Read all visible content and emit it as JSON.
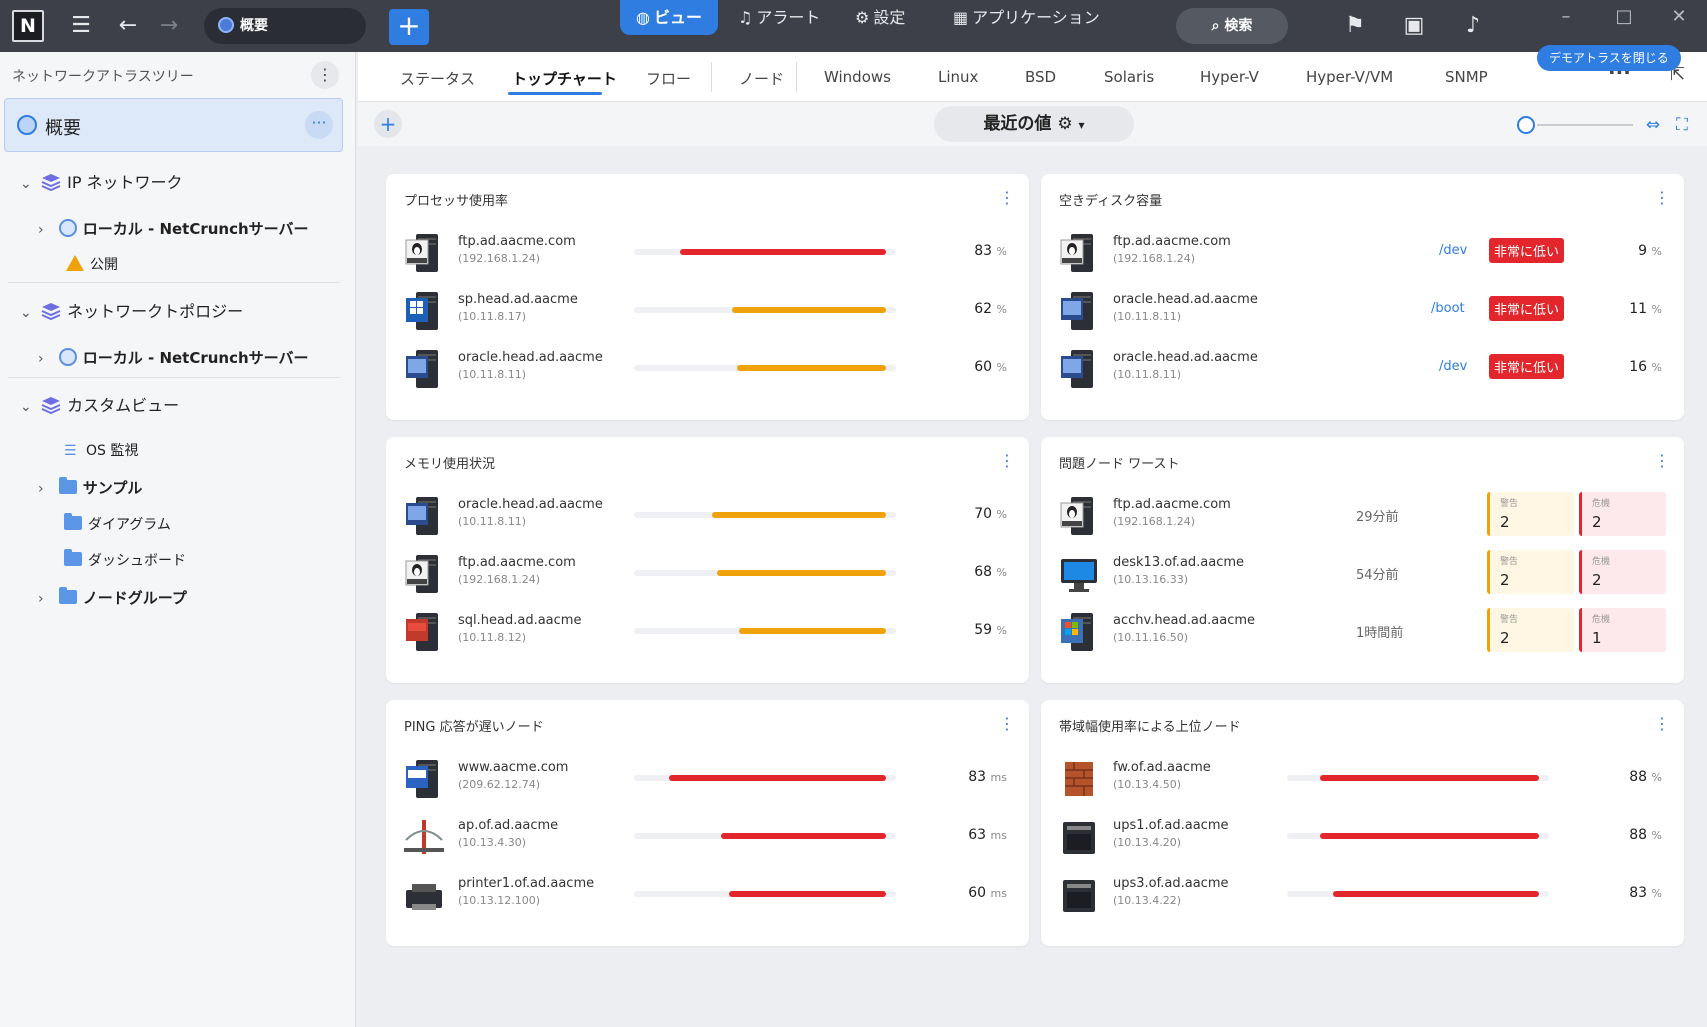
{
  "titlebar": {
    "logo": "N",
    "breadcrumb": "概要",
    "nav": [
      {
        "label": "ビュー",
        "icon": "globe-icon",
        "active": true
      },
      {
        "label": "アラート",
        "icon": "bell-icon",
        "active": false
      },
      {
        "label": "設定",
        "icon": "gear-icon",
        "active": false
      },
      {
        "label": "アプリケーション",
        "icon": "grid-icon",
        "active": false
      }
    ],
    "search_label": "検索"
  },
  "sidebar": {
    "header": "ネットワークアトラスツリー",
    "overview": "概要",
    "items": [
      {
        "label": "IP ネットワーク"
      },
      {
        "label": "ローカル - NetCrunchサーバー"
      },
      {
        "label": "公開"
      },
      {
        "label": "ネットワークトポロジー"
      },
      {
        "label": "ローカル - NetCrunchサーバー"
      },
      {
        "label": "カスタムビュー"
      },
      {
        "label": "OS 監視"
      },
      {
        "label": "サンプル"
      },
      {
        "label": "ダイアグラム"
      },
      {
        "label": "ダッシュボード"
      },
      {
        "label": "ノードグループ"
      }
    ]
  },
  "tabs": [
    "ステータス",
    "トップチャート",
    "フロー",
    "ノード",
    "Windows",
    "Linux",
    "BSD",
    "Solaris",
    "Hyper-V",
    "Hyper-V/VM",
    "SNMP"
  ],
  "demo_button": "デモアトラスを閉じる",
  "toolbar": {
    "recent": "最近の値"
  },
  "colors": {
    "accent": "#2f7de1",
    "critical": "#e3252c",
    "warning": "#f0a20a"
  },
  "cards": {
    "cpu": {
      "title": "プロセッサ使用率",
      "rows": [
        {
          "host": "ftp.ad.aacme.com",
          "ip": "(192.168.1.24)",
          "value": 83,
          "unit": "%",
          "os": "linux"
        },
        {
          "host": "sp.head.ad.aacme",
          "ip": "(10.11.8.17)",
          "value": 62,
          "unit": "%",
          "os": "win"
        },
        {
          "host": "oracle.head.ad.aacme",
          "ip": "(10.11.8.11)",
          "value": 60,
          "unit": "%",
          "os": "server"
        }
      ]
    },
    "disk": {
      "title": "空きディスク容量",
      "badge": "非常に低い",
      "rows": [
        {
          "host": "ftp.ad.aacme.com",
          "ip": "(192.168.1.24)",
          "mount": "/dev",
          "value": 9,
          "unit": "%",
          "os": "linux"
        },
        {
          "host": "oracle.head.ad.aacme",
          "ip": "(10.11.8.11)",
          "mount": "/boot",
          "value": 11,
          "unit": "%",
          "os": "server"
        },
        {
          "host": "oracle.head.ad.aacme",
          "ip": "(10.11.8.11)",
          "mount": "/dev",
          "value": 16,
          "unit": "%",
          "os": "server"
        }
      ]
    },
    "memory": {
      "title": "メモリ使用状況",
      "rows": [
        {
          "host": "oracle.head.ad.aacme",
          "ip": "(10.11.8.11)",
          "value": 70,
          "unit": "%",
          "os": "server"
        },
        {
          "host": "ftp.ad.aacme.com",
          "ip": "(192.168.1.24)",
          "value": 68,
          "unit": "%",
          "os": "linux"
        },
        {
          "host": "sql.head.ad.aacme",
          "ip": "(10.11.8.12)",
          "value": 59,
          "unit": "%",
          "os": "sql"
        }
      ]
    },
    "problems": {
      "title": "問題ノード ワースト",
      "warn_label": "警告",
      "crit_label": "危機",
      "rows": [
        {
          "host": "ftp.ad.aacme.com",
          "ip": "(192.168.1.24)",
          "ago": "29分前",
          "warn": 2,
          "crit": 2,
          "os": "linux"
        },
        {
          "host": "desk13.of.ad.aacme",
          "ip": "(10.13.16.33)",
          "ago": "54分前",
          "warn": 2,
          "crit": 2,
          "os": "desktop"
        },
        {
          "host": "acchv.head.ad.aacme",
          "ip": "(10.11.16.50)",
          "ago": "1時間前",
          "warn": 2,
          "crit": 1,
          "os": "hyperv"
        }
      ]
    },
    "ping": {
      "title": "PING 応答が遅いノード",
      "rows": [
        {
          "host": "www.aacme.com",
          "ip": "(209.62.12.74)",
          "value": 83,
          "unit": "ms",
          "os": "www"
        },
        {
          "host": "ap.of.ad.aacme",
          "ip": "(10.13.4.30)",
          "value": 63,
          "unit": "ms",
          "os": "bridge"
        },
        {
          "host": "printer1.of.ad.aacme",
          "ip": "(10.13.12.100)",
          "value": 60,
          "unit": "ms",
          "os": "printer"
        }
      ]
    },
    "bandwidth": {
      "title": "帯域幅使用率による上位ノード",
      "rows": [
        {
          "host": "fw.of.ad.aacme",
          "ip": "(10.13.4.50)",
          "value": 88,
          "unit": "%",
          "os": "firewall"
        },
        {
          "host": "ups1.of.ad.aacme",
          "ip": "(10.13.4.20)",
          "value": 88,
          "unit": "%",
          "os": "ups"
        },
        {
          "host": "ups3.of.ad.aacme",
          "ip": "(10.13.4.22)",
          "value": 83,
          "unit": "%",
          "os": "ups"
        }
      ]
    }
  }
}
